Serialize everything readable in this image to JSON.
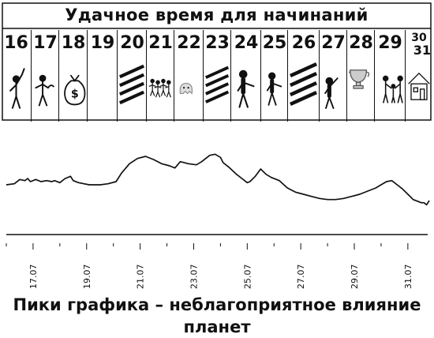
{
  "calendar": {
    "title": "Удачное время для начинаний",
    "days": [
      {
        "label": "16",
        "icon": "pointing-man-icon"
      },
      {
        "label": "17",
        "icon": "man-with-money-icon"
      },
      {
        "label": "18",
        "icon": "money-bag-icon"
      },
      {
        "label": "19",
        "icon": ""
      },
      {
        "label": "20",
        "icon": "hatched-lines-icon"
      },
      {
        "label": "21",
        "icon": "marching-group-icon"
      },
      {
        "label": "22",
        "icon": "small-ghost-icon"
      },
      {
        "label": "23",
        "icon": "hatched-lines-icon"
      },
      {
        "label": "24",
        "icon": "man-handshake-icon"
      },
      {
        "label": "25",
        "icon": "man-handshake-icon"
      },
      {
        "label": "26",
        "icon": "hatched-lines-icon"
      },
      {
        "label": "27",
        "icon": "man-with-trophy-icon"
      },
      {
        "label": "28",
        "icon": "trophy-icon"
      },
      {
        "label": "29",
        "icon": "family-icon"
      },
      {
        "label": "30",
        "label2": "31",
        "icon": "house-icon"
      }
    ]
  },
  "chart_data": {
    "type": "line",
    "x_tick_labels": [
      "17.07",
      "19.07",
      "21.07",
      "23.07",
      "25.07",
      "27.07",
      "29.07",
      "31.07"
    ],
    "xlim": [
      "16.07",
      "31.07"
    ],
    "series": [
      {
        "x": [
          16.0,
          16.3,
          16.5,
          16.7,
          16.8,
          16.9,
          17.1,
          17.3,
          17.5,
          17.7,
          17.8,
          18.0,
          18.2,
          18.4,
          18.5,
          18.7,
          18.9,
          19.1,
          19.3,
          19.5,
          19.8,
          20.1,
          20.3,
          20.6,
          20.9,
          21.2,
          21.5,
          21.8,
          22.1,
          22.3,
          22.5,
          22.8,
          23.1,
          23.3,
          23.6,
          23.8,
          24.0,
          24.1,
          24.3,
          24.6,
          24.8,
          25.0,
          25.1,
          25.3,
          25.5,
          25.7,
          25.9,
          26.2,
          26.5,
          26.8,
          27.1,
          27.4,
          27.7,
          28.0,
          28.3,
          28.6,
          28.9,
          29.2,
          29.5,
          29.8,
          30.0,
          30.2,
          30.4,
          30.6,
          30.8,
          31.0,
          31.2,
          31.4,
          31.5,
          31.6,
          31.7,
          31.8
        ],
        "y": [
          47,
          48,
          52,
          51,
          53,
          50,
          52,
          50,
          51,
          50,
          51,
          49,
          53,
          55,
          51,
          49,
          48,
          47,
          47,
          47,
          48,
          50,
          58,
          67,
          72,
          74,
          71,
          67,
          65,
          63,
          69,
          67,
          66,
          69,
          75,
          76,
          73,
          68,
          64,
          57,
          53,
          49,
          50,
          55,
          62,
          57,
          54,
          51,
          44,
          40,
          38,
          36,
          34,
          33,
          33,
          34,
          36,
          38,
          41,
          44,
          47,
          50,
          51,
          47,
          43,
          38,
          33,
          31,
          30,
          30,
          28,
          32
        ]
      }
    ],
    "grid": false
  },
  "caption": "Пики графика – неблагоприятное влияние планет"
}
